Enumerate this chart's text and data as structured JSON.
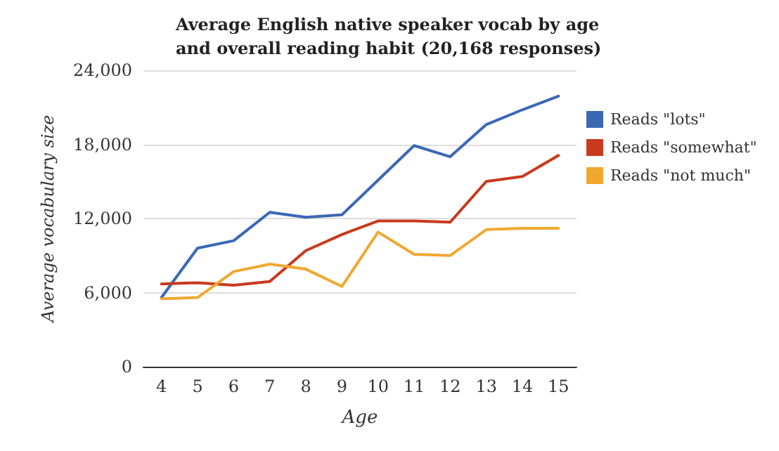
{
  "chart_data": {
    "type": "line",
    "title": "Average English native speaker vocab by age\nand overall reading habit (20,168 responses)",
    "xlabel": "Age",
    "ylabel": "Average vocabulary size",
    "x": [
      4,
      5,
      6,
      7,
      8,
      9,
      10,
      11,
      12,
      13,
      14,
      15
    ],
    "series": [
      {
        "name": "Reads \"lots\"",
        "color": "#3b68b5",
        "values": [
          5600,
          9600,
          10200,
          12500,
          12100,
          12300,
          15100,
          17900,
          17000,
          19600,
          20800,
          21900
        ]
      },
      {
        "name": "Reads \"somewhat\"",
        "color": "#c8391e",
        "values": [
          6700,
          6800,
          6600,
          6900,
          9400,
          10700,
          11800,
          11800,
          11700,
          15000,
          15400,
          17100
        ]
      },
      {
        "name": "Reads \"not much\"",
        "color": "#f0a830",
        "values": [
          5500,
          5600,
          7700,
          8300,
          7900,
          6500,
          10900,
          9100,
          9000,
          11100,
          11200,
          11200
        ]
      }
    ],
    "xlim": [
      3.5,
      15.5
    ],
    "xticks": [
      4,
      5,
      6,
      7,
      8,
      9,
      10,
      11,
      12,
      13,
      14,
      15
    ],
    "ylim": [
      0,
      24000
    ],
    "yticks": [
      0,
      {
        "value": 6000,
        "label": "6,000"
      },
      {
        "value": 12000,
        "label": "12,000"
      },
      {
        "value": 18000,
        "label": "18,000"
      },
      {
        "value": 24000,
        "label": "24,000"
      }
    ],
    "grid": "y",
    "legend": "right",
    "marker": "none",
    "line_style": "solid"
  }
}
